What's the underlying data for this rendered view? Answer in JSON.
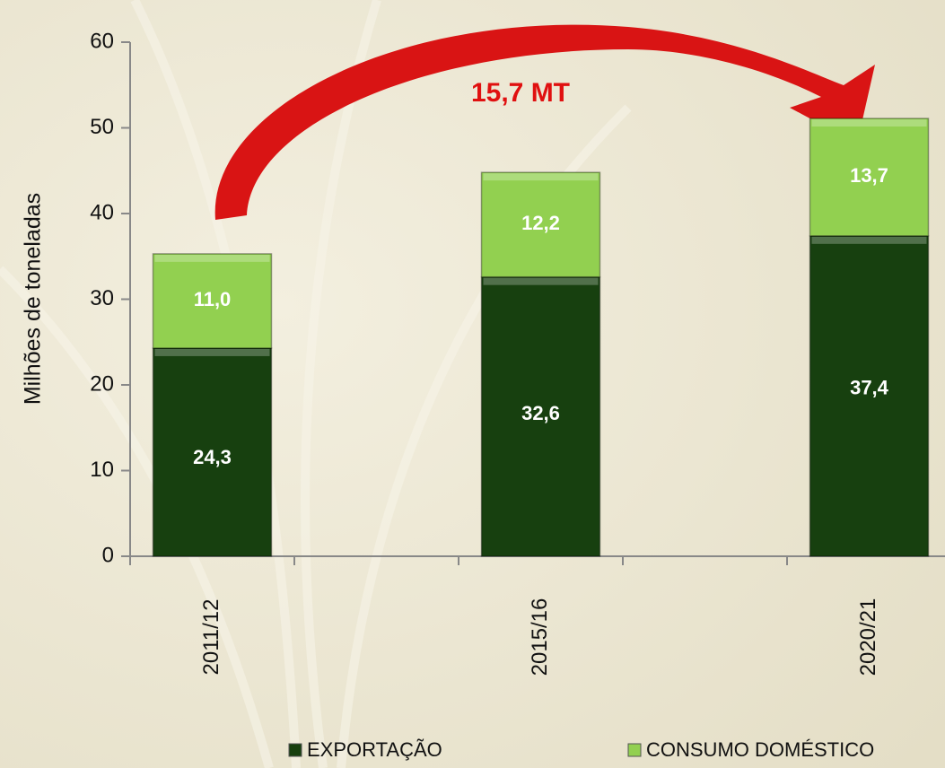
{
  "chart_data": {
    "type": "stacked-bar",
    "categories": [
      "2011/12",
      "2015/16",
      "2020/21"
    ],
    "series": [
      {
        "name": "EXPORTAÇÃO",
        "color": "#17400f",
        "values": [
          24.3,
          32.6,
          37.4
        ],
        "value_labels": [
          "24,3",
          "32,6",
          "37,4"
        ]
      },
      {
        "name": "CONSUMO DOMÉSTICO",
        "color": "#92d050",
        "values": [
          11.0,
          12.2,
          13.7
        ],
        "value_labels": [
          "11,0",
          "12,2",
          "13,7"
        ]
      }
    ],
    "ylabel": "Milhões de toneladas",
    "annotation": "15,7 MT",
    "ylim": [
      0,
      60
    ],
    "yticks": [
      0,
      10,
      20,
      30,
      40,
      50,
      60
    ]
  }
}
